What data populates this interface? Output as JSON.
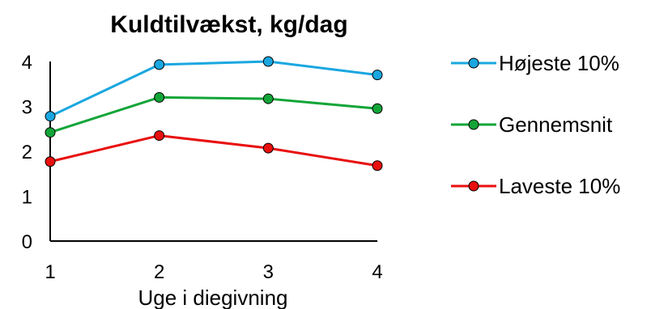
{
  "chart_data": {
    "type": "line",
    "title": "Kuldtilvækst, kg/dag",
    "xlabel": "Uge i diegivning",
    "ylabel": "",
    "categories": [
      "1",
      "2",
      "3",
      "4"
    ],
    "ylim": [
      0,
      4
    ],
    "yticks": [
      "0",
      "1",
      "2",
      "3",
      "4"
    ],
    "grid": false,
    "legend_position": "right",
    "series": [
      {
        "name": "Højeste 10%",
        "color": "#1aa7e0",
        "values": [
          2.78,
          3.93,
          4.0,
          3.7
        ]
      },
      {
        "name": "Gennemsnit",
        "color": "#12a538",
        "values": [
          2.42,
          3.2,
          3.17,
          2.95
        ]
      },
      {
        "name": "Laveste 10%",
        "color": "#e8100f",
        "values": [
          1.77,
          2.35,
          2.07,
          1.68
        ]
      }
    ]
  }
}
